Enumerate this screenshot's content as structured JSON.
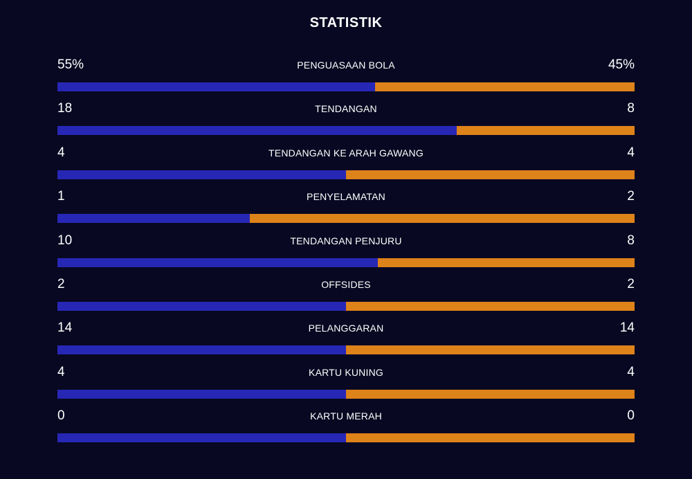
{
  "title": "STATISTIK",
  "colors": {
    "home": "#2727b6",
    "away": "#de821a",
    "background": "#080822"
  },
  "chart_data": {
    "type": "bar",
    "title": "STATISTIK",
    "orientation": "horizontal-stacked-comparison",
    "categories": [
      "PENGUASAAN BOLA",
      "TENDANGAN",
      "TENDANGAN KE ARAH GAWANG",
      "PENYELAMATAN",
      "TENDANGAN PENJURU",
      "OFFSIDES",
      "PELANGGARAN",
      "KARTU KUNING",
      "KARTU MERAH"
    ],
    "left_labels": [
      "55%",
      "18",
      "4",
      "1",
      "10",
      "2",
      "14",
      "4",
      "0"
    ],
    "right_labels": [
      "45%",
      "8",
      "4",
      "2",
      "8",
      "2",
      "14",
      "4",
      "0"
    ],
    "series": [
      {
        "values": [
          55,
          18,
          4,
          1,
          10,
          2,
          14,
          4,
          0
        ]
      },
      {
        "values": [
          45,
          8,
          4,
          2,
          8,
          2,
          14,
          4,
          0
        ]
      }
    ]
  }
}
